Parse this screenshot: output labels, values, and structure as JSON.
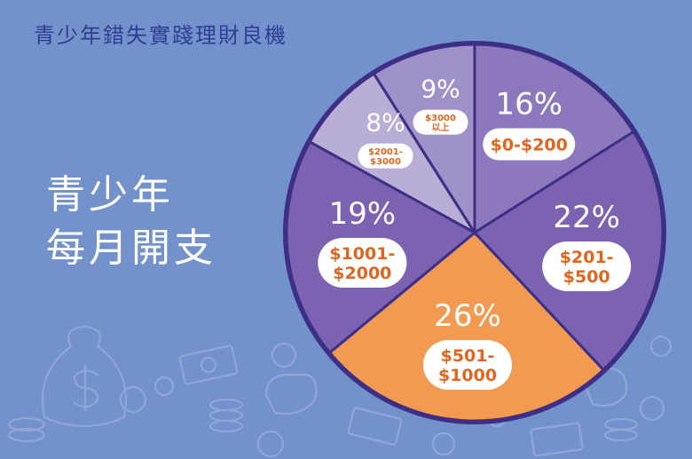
{
  "title": "青少年錯失實踐理財良機",
  "heading": {
    "line1": "青少年",
    "line2": "每月開支"
  },
  "colors": {
    "background": "#7391cb",
    "title": "#2d3f93",
    "label_text": "#e0651f",
    "pie_border": "#3e2f86"
  },
  "chart_data": {
    "type": "pie",
    "title": "青少年每月開支",
    "slices": [
      {
        "label_lines": [
          "$0-$200"
        ],
        "value": 16,
        "display": "16%",
        "color": "#8c79bd",
        "size": "big"
      },
      {
        "label_lines": [
          "$201-",
          "$500"
        ],
        "value": 22,
        "display": "22%",
        "color": "#7b63b2",
        "size": "big"
      },
      {
        "label_lines": [
          "$501-",
          "$1000"
        ],
        "value": 26,
        "display": "26%",
        "color": "#f39a52",
        "size": "big"
      },
      {
        "label_lines": [
          "$1001-",
          "$2000"
        ],
        "value": 19,
        "display": "19%",
        "color": "#7b63b2",
        "size": "big"
      },
      {
        "label_lines": [
          "$2001-",
          "$3000"
        ],
        "value": 8,
        "display": "8%",
        "color": "#b9aed6",
        "size": "small"
      },
      {
        "label_lines": [
          "$3000",
          "以上"
        ],
        "value": 9,
        "display": "9%",
        "color": "#a092c9",
        "size": "small"
      }
    ]
  }
}
